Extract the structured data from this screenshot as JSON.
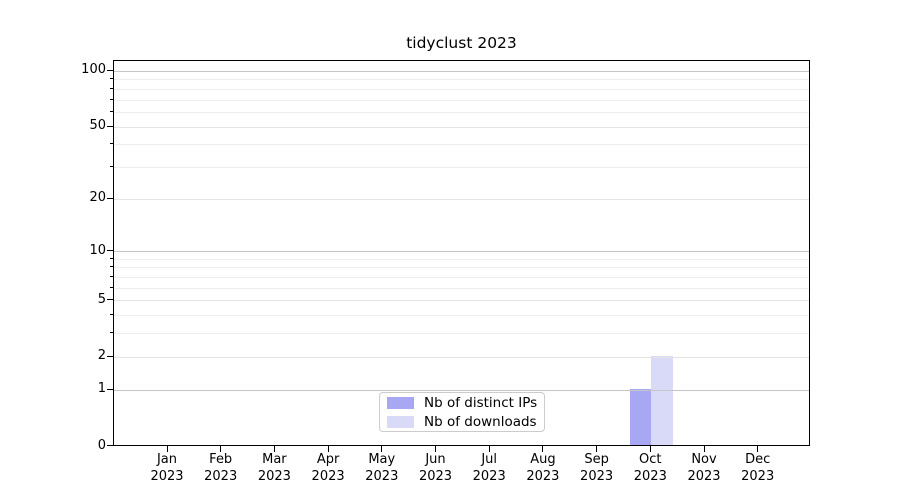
{
  "chart_data": {
    "type": "bar",
    "title": "tidyclust 2023",
    "y_scale": "log1p",
    "months": [
      "Jan",
      "Feb",
      "Mar",
      "Apr",
      "May",
      "Jun",
      "Jul",
      "Aug",
      "Sep",
      "Oct",
      "Nov",
      "Dec"
    ],
    "year": "2023",
    "series": [
      {
        "name": "Nb of distinct IPs",
        "color": "#a7a7f3",
        "values": [
          0,
          0,
          0,
          0,
          0,
          0,
          0,
          0,
          0,
          1,
          0,
          0
        ]
      },
      {
        "name": "Nb of downloads",
        "color": "#d9d9f8",
        "values": [
          0,
          0,
          0,
          0,
          0,
          0,
          0,
          0,
          0,
          2,
          0,
          0
        ]
      }
    ],
    "y_ticks": [
      0,
      1,
      2,
      5,
      10,
      20,
      50,
      100
    ],
    "y_minor_ticks": [
      3,
      4,
      6,
      7,
      8,
      9,
      30,
      40,
      60,
      70,
      80,
      90
    ],
    "ylim": [
      0,
      115
    ],
    "grid": "horizontal",
    "legend_position": "lower center inside"
  },
  "colors": {
    "grid_major": "#c5c5c5",
    "grid_sub": "#e4e4e4",
    "grid_minor": "#eeeeee",
    "axis": "#000000",
    "background": "#ffffff"
  }
}
